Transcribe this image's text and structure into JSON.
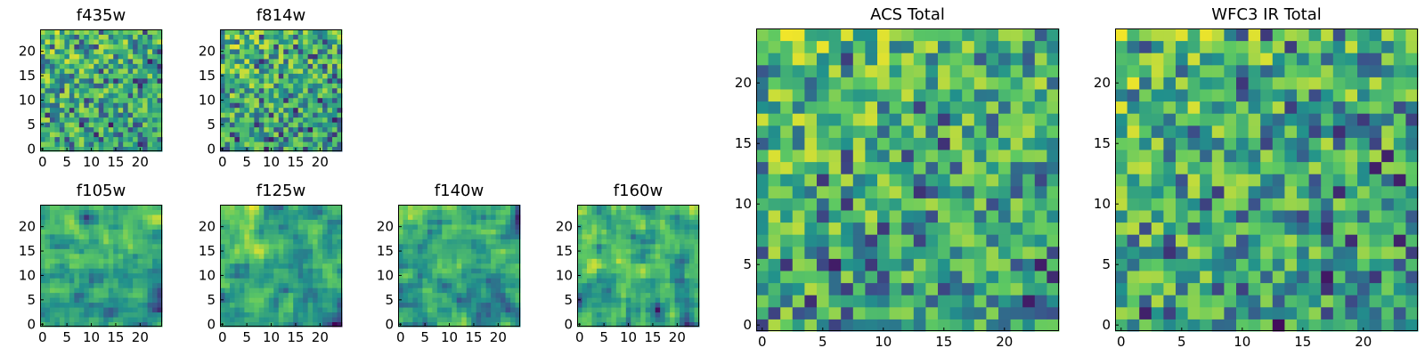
{
  "colormap": {
    "name": "viridis",
    "stops": [
      "#440154",
      "#3b528b",
      "#21918c",
      "#5ec962",
      "#fde725"
    ]
  },
  "chart_data": [
    {
      "type": "heatmap",
      "title": "f435w",
      "grid_size": [
        25,
        25
      ],
      "xlim": [
        0,
        24
      ],
      "ylim": [
        0,
        24
      ],
      "xticks": [
        0,
        5,
        10,
        15,
        20
      ],
      "yticks": [
        0,
        5,
        10,
        15,
        20
      ],
      "value_range": [
        0,
        1
      ],
      "values_note": "noisy pixel intensities, mostly mid-high with sparse low pixels"
    },
    {
      "type": "heatmap",
      "title": "f814w",
      "grid_size": [
        25,
        25
      ],
      "xlim": [
        0,
        24
      ],
      "ylim": [
        0,
        24
      ],
      "xticks": [
        0,
        5,
        10,
        15,
        20
      ],
      "yticks": [
        0,
        5,
        10,
        15,
        20
      ],
      "value_range": [
        0,
        1
      ]
    },
    {
      "type": "heatmap",
      "title": "f105w",
      "grid_size": [
        25,
        25
      ],
      "xlim": [
        0,
        24
      ],
      "ylim": [
        0,
        24
      ],
      "xticks": [
        0,
        5,
        10,
        15,
        20
      ],
      "yticks": [
        0,
        5,
        10,
        15,
        20
      ],
      "value_range": [
        0,
        1
      ]
    },
    {
      "type": "heatmap",
      "title": "f125w",
      "grid_size": [
        25,
        25
      ],
      "xlim": [
        0,
        24
      ],
      "ylim": [
        0,
        24
      ],
      "xticks": [
        0,
        5,
        10,
        15,
        20
      ],
      "yticks": [
        0,
        5,
        10,
        15,
        20
      ],
      "value_range": [
        0,
        1
      ]
    },
    {
      "type": "heatmap",
      "title": "f140w",
      "grid_size": [
        25,
        25
      ],
      "xlim": [
        0,
        24
      ],
      "ylim": [
        0,
        24
      ],
      "xticks": [
        0,
        5,
        10,
        15,
        20
      ],
      "yticks": [
        0,
        5,
        10,
        15,
        20
      ],
      "value_range": [
        0,
        1
      ]
    },
    {
      "type": "heatmap",
      "title": "f160w",
      "grid_size": [
        25,
        25
      ],
      "xlim": [
        0,
        24
      ],
      "ylim": [
        0,
        24
      ],
      "xticks": [
        0,
        5,
        10,
        15,
        20
      ],
      "yticks": [
        0,
        5,
        10,
        15,
        20
      ],
      "value_range": [
        0,
        1
      ]
    },
    {
      "type": "heatmap",
      "title": "ACS Total",
      "grid_size": [
        25,
        25
      ],
      "xlim": [
        0,
        24
      ],
      "ylim": [
        0,
        24
      ],
      "xticks": [
        0,
        5,
        10,
        15,
        20
      ],
      "yticks": [
        0,
        5,
        10,
        15,
        20
      ],
      "value_range": [
        0,
        1
      ]
    },
    {
      "type": "heatmap",
      "title": "WFC3 IR Total",
      "grid_size": [
        25,
        25
      ],
      "xlim": [
        0,
        24
      ],
      "ylim": [
        0,
        24
      ],
      "xticks": [
        0,
        5,
        10,
        15,
        20
      ],
      "yticks": [
        0,
        5,
        10,
        15,
        20
      ],
      "value_range": [
        0,
        1
      ]
    }
  ]
}
